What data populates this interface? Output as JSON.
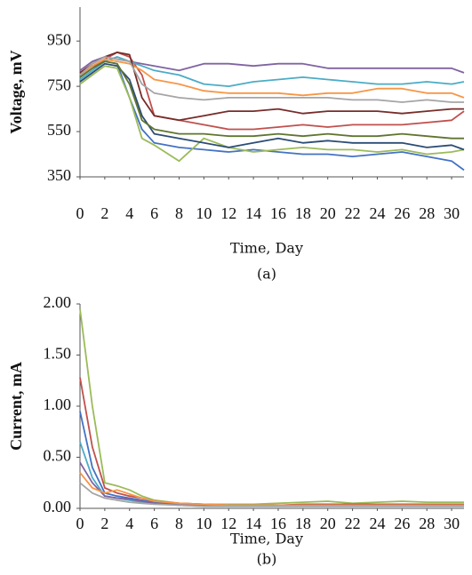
{
  "chart_data": [
    {
      "type": "line",
      "y_label": "Voltage, mV",
      "x_label": "Time, Day",
      "caption": "(a)",
      "x": [
        0,
        1,
        2,
        3,
        4,
        5,
        6,
        8,
        10,
        12,
        14,
        16,
        18,
        20,
        22,
        24,
        26,
        28,
        30,
        31
      ],
      "xlim": [
        0,
        31
      ],
      "ylim": [
        350,
        1100
      ],
      "xticks": [
        0,
        2,
        4,
        6,
        8,
        10,
        12,
        14,
        16,
        18,
        20,
        22,
        24,
        26,
        28,
        30
      ],
      "yticks": [
        350,
        550,
        750,
        950
      ],
      "series": [
        {
          "color": "#8064a2",
          "values": [
            820,
            860,
            880,
            870,
            860,
            850,
            840,
            820,
            850,
            850,
            840,
            850,
            850,
            830,
            830,
            830,
            830,
            830,
            830,
            810
          ]
        },
        {
          "color": "#4472c4",
          "values": [
            800,
            840,
            860,
            850,
            700,
            560,
            500,
            480,
            470,
            460,
            470,
            460,
            450,
            450,
            440,
            450,
            460,
            440,
            420,
            380
          ]
        },
        {
          "color": "#c0504d",
          "values": [
            790,
            830,
            870,
            900,
            880,
            800,
            620,
            600,
            580,
            560,
            560,
            570,
            580,
            570,
            580,
            580,
            580,
            590,
            600,
            640
          ]
        },
        {
          "color": "#9bbb59",
          "values": [
            760,
            800,
            840,
            830,
            700,
            520,
            490,
            420,
            520,
            480,
            460,
            470,
            480,
            470,
            470,
            460,
            470,
            450,
            460,
            470
          ]
        },
        {
          "color": "#4bacc6",
          "values": [
            780,
            820,
            860,
            880,
            860,
            840,
            820,
            800,
            760,
            750,
            770,
            780,
            790,
            780,
            770,
            760,
            760,
            770,
            760,
            770
          ]
        },
        {
          "color": "#f79646",
          "values": [
            800,
            840,
            870,
            860,
            850,
            820,
            780,
            760,
            730,
            720,
            720,
            720,
            710,
            720,
            720,
            740,
            740,
            720,
            720,
            700
          ]
        },
        {
          "color": "#2c4d75",
          "values": [
            770,
            810,
            850,
            840,
            780,
            620,
            540,
            520,
            500,
            480,
            500,
            520,
            500,
            510,
            500,
            500,
            500,
            480,
            490,
            470
          ]
        },
        {
          "color": "#772c2a",
          "values": [
            810,
            850,
            880,
            900,
            890,
            700,
            620,
            600,
            620,
            640,
            640,
            650,
            630,
            640,
            640,
            640,
            630,
            640,
            650,
            650
          ]
        },
        {
          "color": "#5f7530",
          "values": [
            790,
            830,
            860,
            850,
            760,
            600,
            560,
            540,
            540,
            530,
            530,
            540,
            530,
            540,
            530,
            530,
            540,
            530,
            520,
            520
          ]
        },
        {
          "color": "#a5a5a5",
          "values": [
            800,
            850,
            880,
            870,
            860,
            760,
            720,
            700,
            690,
            700,
            700,
            700,
            700,
            700,
            690,
            690,
            680,
            690,
            680,
            680
          ]
        }
      ]
    },
    {
      "type": "line",
      "y_label": "Current, mA",
      "x_label": "Time, Day",
      "caption": "(b)",
      "x": [
        0,
        1,
        2,
        3,
        4,
        5,
        6,
        8,
        10,
        12,
        14,
        16,
        18,
        20,
        22,
        24,
        26,
        28,
        30,
        31
      ],
      "xlim": [
        0,
        31
      ],
      "ylim": [
        0,
        2
      ],
      "xticks": [
        0,
        2,
        4,
        6,
        8,
        10,
        12,
        14,
        16,
        18,
        20,
        22,
        24,
        26,
        28,
        30
      ],
      "yticks": [
        {
          "value": 0,
          "label": "0.00"
        },
        {
          "value": 0.5,
          "label": "0.50"
        },
        {
          "value": 1,
          "label": "1.00"
        },
        {
          "value": 1.5,
          "label": "1.50"
        },
        {
          "value": 2,
          "label": "2.00"
        }
      ],
      "series": [
        {
          "color": "#9bbb59",
          "values": [
            1.95,
            1.0,
            0.25,
            0.22,
            0.18,
            0.12,
            0.08,
            0.05,
            0.04,
            0.04,
            0.04,
            0.05,
            0.06,
            0.07,
            0.05,
            0.06,
            0.07,
            0.06,
            0.06,
            0.06
          ]
        },
        {
          "color": "#c0504d",
          "values": [
            1.28,
            0.6,
            0.2,
            0.15,
            0.12,
            0.1,
            0.07,
            0.05,
            0.04,
            0.03,
            0.03,
            0.03,
            0.04,
            0.04,
            0.04,
            0.04,
            0.04,
            0.04,
            0.04,
            0.04
          ]
        },
        {
          "color": "#4472c4",
          "values": [
            0.95,
            0.4,
            0.15,
            0.12,
            0.1,
            0.08,
            0.06,
            0.04,
            0.03,
            0.03,
            0.03,
            0.03,
            0.03,
            0.03,
            0.03,
            0.03,
            0.03,
            0.03,
            0.03,
            0.03
          ]
        },
        {
          "color": "#4bacc6",
          "values": [
            0.65,
            0.3,
            0.12,
            0.1,
            0.08,
            0.06,
            0.05,
            0.03,
            0.02,
            0.02,
            0.02,
            0.02,
            0.02,
            0.02,
            0.02,
            0.02,
            0.02,
            0.02,
            0.02,
            0.02
          ]
        },
        {
          "color": "#8064a2",
          "values": [
            0.45,
            0.25,
            0.12,
            0.1,
            0.09,
            0.07,
            0.05,
            0.04,
            0.03,
            0.03,
            0.03,
            0.03,
            0.03,
            0.03,
            0.03,
            0.03,
            0.03,
            0.03,
            0.03,
            0.03
          ]
        },
        {
          "color": "#f79646",
          "values": [
            0.35,
            0.2,
            0.15,
            0.18,
            0.14,
            0.1,
            0.07,
            0.05,
            0.04,
            0.03,
            0.03,
            0.03,
            0.03,
            0.03,
            0.03,
            0.03,
            0.03,
            0.03,
            0.03,
            0.03
          ]
        },
        {
          "color": "#a5a5a5",
          "values": [
            0.25,
            0.15,
            0.1,
            0.08,
            0.06,
            0.05,
            0.04,
            0.03,
            0.02,
            0.02,
            0.02,
            0.02,
            0.02,
            0.02,
            0.02,
            0.02,
            0.02,
            0.02,
            0.02,
            0.02
          ]
        }
      ]
    }
  ]
}
